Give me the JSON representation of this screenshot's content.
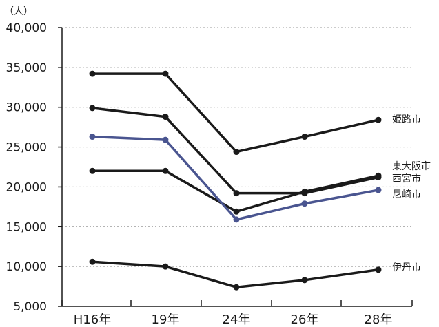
{
  "chart_data": {
    "type": "line",
    "unit_label": "（人）",
    "categories": [
      "H16年",
      "19年",
      "24年",
      "26年",
      "28年"
    ],
    "y_ticks": [
      "40,000",
      "35,000",
      "30,000",
      "25,000",
      "20,000",
      "15,000",
      "10,000",
      "5,000"
    ],
    "ylim": [
      5000,
      40000
    ],
    "grid": "horizontal dotted",
    "series": [
      {
        "name": "姫路市",
        "color": "#1a1a1a",
        "values": [
          34200,
          34200,
          24400,
          26300,
          28400
        ]
      },
      {
        "name": "東大阪市",
        "color": "#1a1a1a",
        "values": [
          22000,
          22000,
          16900,
          19400,
          21400
        ]
      },
      {
        "name": "西宮市",
        "color": "#1a1a1a",
        "values": [
          29900,
          28800,
          19200,
          19200,
          21200
        ]
      },
      {
        "name": "尼崎市",
        "color": "#4a5590",
        "values": [
          26300,
          25900,
          15900,
          17900,
          19600
        ]
      },
      {
        "name": "伊丹市",
        "color": "#1a1a1a",
        "values": [
          10600,
          10000,
          7400,
          8300,
          9600
        ]
      }
    ]
  }
}
